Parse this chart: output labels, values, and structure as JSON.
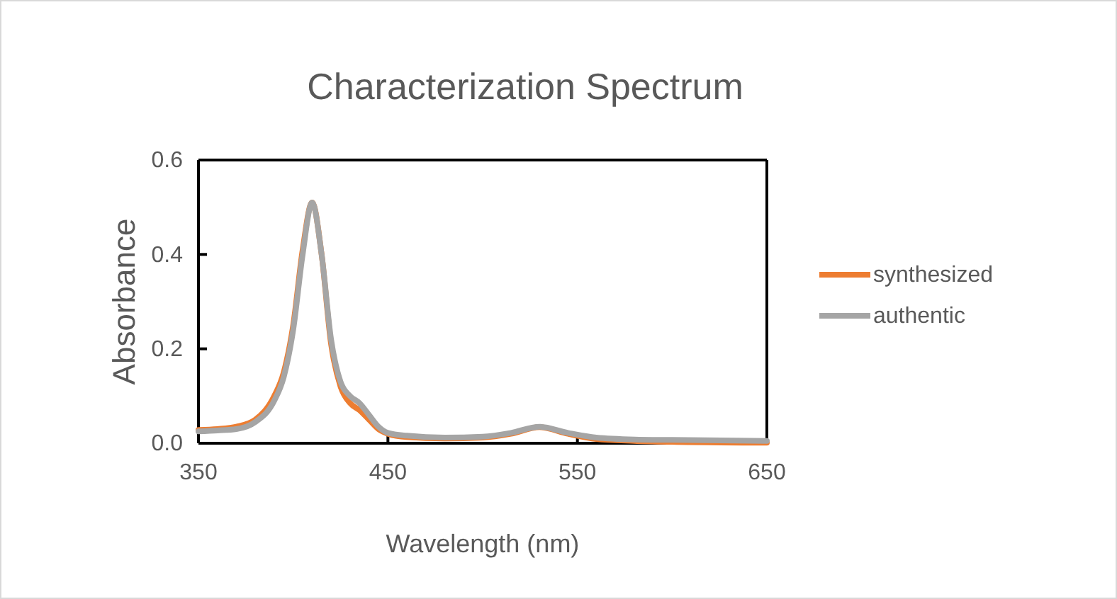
{
  "chart_data": {
    "type": "line",
    "title": "Characterization Spectrum",
    "xlabel": "Wavelength (nm)",
    "ylabel": "Absorbance",
    "xlim": [
      350,
      650
    ],
    "xticks": [
      350,
      450,
      550,
      650
    ],
    "ylim": [
      0,
      0.6
    ],
    "yticks": [
      {
        "value": 0,
        "label": "0.0"
      },
      {
        "value": 0.2,
        "label": "0.2"
      },
      {
        "value": 0.4,
        "label": "0.4"
      },
      {
        "value": 0.6,
        "label": "0.6"
      }
    ],
    "grid": false,
    "legend": "right",
    "line_style": "solid",
    "marker": "none",
    "series": [
      {
        "name": "synthesized",
        "color": "#ed7d31",
        "x": [
          350,
          360,
          370,
          380,
          390,
          395,
          400,
          405,
          410,
          415,
          420,
          425,
          430,
          435,
          440,
          445,
          450,
          460,
          480,
          500,
          515,
          530,
          545,
          560,
          580,
          600,
          650
        ],
        "values": [
          0.028,
          0.03,
          0.035,
          0.05,
          0.1,
          0.15,
          0.25,
          0.41,
          0.51,
          0.4,
          0.21,
          0.12,
          0.085,
          0.07,
          0.05,
          0.03,
          0.02,
          0.013,
          0.01,
          0.012,
          0.02,
          0.034,
          0.02,
          0.009,
          0.005,
          0.003,
          0.001
        ]
      },
      {
        "name": "authentic",
        "color": "#a5a5a5",
        "x": [
          350,
          360,
          370,
          380,
          390,
          395,
          400,
          405,
          410,
          415,
          420,
          425,
          430,
          435,
          440,
          445,
          450,
          460,
          480,
          500,
          515,
          530,
          545,
          560,
          580,
          600,
          650
        ],
        "values": [
          0.025,
          0.027,
          0.03,
          0.045,
          0.09,
          0.14,
          0.24,
          0.4,
          0.51,
          0.4,
          0.22,
          0.13,
          0.1,
          0.085,
          0.06,
          0.035,
          0.022,
          0.016,
          0.012,
          0.014,
          0.022,
          0.035,
          0.022,
          0.012,
          0.008,
          0.007,
          0.005
        ]
      }
    ]
  }
}
